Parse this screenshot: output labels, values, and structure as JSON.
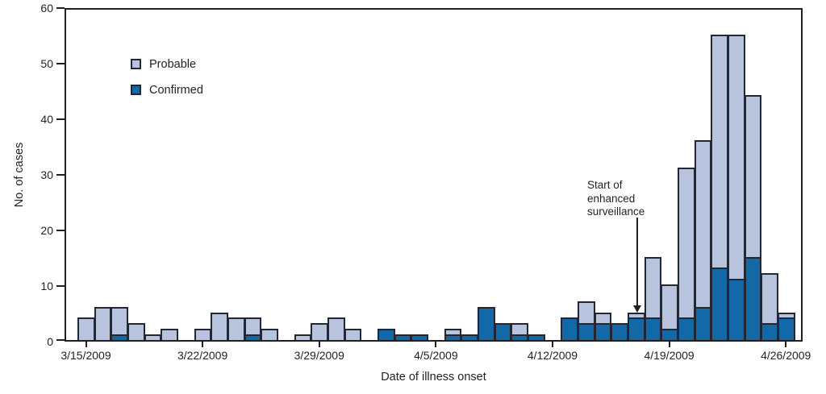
{
  "chart_data": {
    "type": "bar",
    "stacked": true,
    "title": "",
    "xlabel": "Date of illness onset",
    "ylabel": "No. of cases",
    "ylim": [
      0,
      60
    ],
    "yticks": [
      0,
      10,
      20,
      30,
      40,
      50,
      60
    ],
    "grid": false,
    "legend_position": "upper-left-inside",
    "colors": {
      "probable": "#b8c3de",
      "confirmed": "#1368a7",
      "stroke": "#232733",
      "axis": "#231f20"
    },
    "categories": [
      "3/15/2009",
      "3/16/2009",
      "3/17/2009",
      "3/18/2009",
      "3/19/2009",
      "3/20/2009",
      "3/21/2009",
      "3/22/2009",
      "3/23/2009",
      "3/24/2009",
      "3/25/2009",
      "3/26/2009",
      "3/27/2009",
      "3/28/2009",
      "3/29/2009",
      "3/30/2009",
      "3/31/2009",
      "4/1/2009",
      "4/2/2009",
      "4/3/2009",
      "4/4/2009",
      "4/5/2009",
      "4/6/2009",
      "4/7/2009",
      "4/8/2009",
      "4/9/2009",
      "4/10/2009",
      "4/11/2009",
      "4/12/2009",
      "4/13/2009",
      "4/14/2009",
      "4/15/2009",
      "4/16/2009",
      "4/17/2009",
      "4/18/2009",
      "4/19/2009",
      "4/20/2009",
      "4/21/2009",
      "4/22/2009",
      "4/23/2009",
      "4/24/2009",
      "4/25/2009",
      "4/26/2009"
    ],
    "series": [
      {
        "name": "Probable",
        "color": "#b8c3de",
        "values": [
          4,
          6,
          5,
          3,
          1,
          2,
          0,
          2,
          5,
          4,
          3,
          2,
          0,
          1,
          3,
          4,
          2,
          0,
          0,
          0,
          0,
          0,
          1,
          0,
          0,
          0,
          2,
          0,
          0,
          0,
          4,
          2,
          0,
          1,
          11,
          8,
          27,
          30,
          42,
          44,
          29,
          9,
          1
        ]
      },
      {
        "name": "Confirmed",
        "color": "#1368a7",
        "values": [
          0,
          0,
          1,
          0,
          0,
          0,
          0,
          0,
          0,
          0,
          1,
          0,
          0,
          0,
          0,
          0,
          0,
          0,
          2,
          1,
          1,
          0,
          1,
          1,
          6,
          3,
          1,
          1,
          0,
          4,
          3,
          3,
          3,
          4,
          4,
          2,
          4,
          6,
          13,
          11,
          15,
          3,
          4
        ]
      }
    ],
    "xticks": [
      {
        "label": "3/15/2009",
        "day_index": 0
      },
      {
        "label": "3/22/2009",
        "day_index": 7
      },
      {
        "label": "3/29/2009",
        "day_index": 14
      },
      {
        "label": "4/5/2009",
        "day_index": 21
      },
      {
        "label": "4/12/2009",
        "day_index": 28
      },
      {
        "label": "4/19/2009",
        "day_index": 35
      },
      {
        "label": "4/26/2009",
        "day_index": 42
      }
    ],
    "annotation": {
      "text": "Start of enhanced surveillance",
      "lines": [
        "Start of",
        "enhanced",
        "surveillance"
      ],
      "target_date": "4/17/2009",
      "target_day_index": 33
    }
  }
}
